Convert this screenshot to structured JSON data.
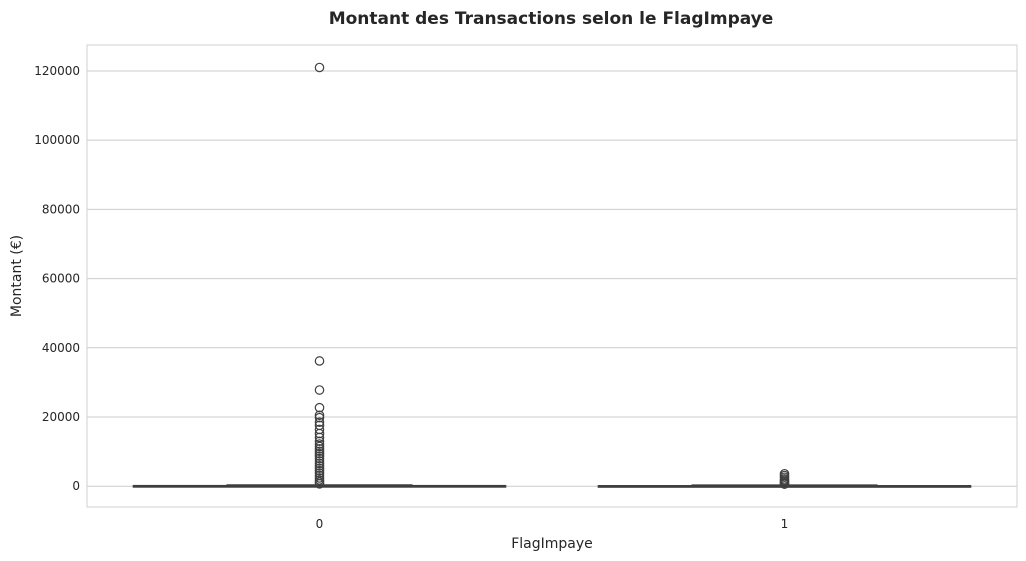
{
  "chart_data": {
    "type": "box",
    "title": "Montant des Transactions selon le FlagImpaye",
    "xlabel": "FlagImpaye",
    "ylabel": "Montant (€)",
    "ylim": [
      -6000,
      127500
    ],
    "yticks": [
      0,
      20000,
      40000,
      60000,
      80000,
      100000,
      120000
    ],
    "grid": true,
    "categories": [
      "0",
      "1"
    ],
    "boxes": [
      {
        "category": "0",
        "whisker_low": 0,
        "q1": 0,
        "median": 50,
        "q3": 150,
        "whisker_high": 350,
        "outliers": [
          121000,
          36200,
          27800,
          22700,
          20500,
          19800,
          18500,
          17600,
          16400,
          15200,
          14100,
          13000,
          12200,
          11500,
          10800,
          10100,
          9400,
          8700,
          8000,
          7300,
          6600,
          5900,
          5200,
          4500,
          3800,
          3100,
          2400,
          1800,
          1200,
          700
        ]
      },
      {
        "category": "1",
        "whisker_low": 0,
        "q1": 0,
        "median": 40,
        "q3": 120,
        "whisker_high": 300,
        "outliers": [
          3600,
          3100,
          2600,
          2100,
          1700,
          1300,
          900,
          600
        ]
      }
    ]
  }
}
